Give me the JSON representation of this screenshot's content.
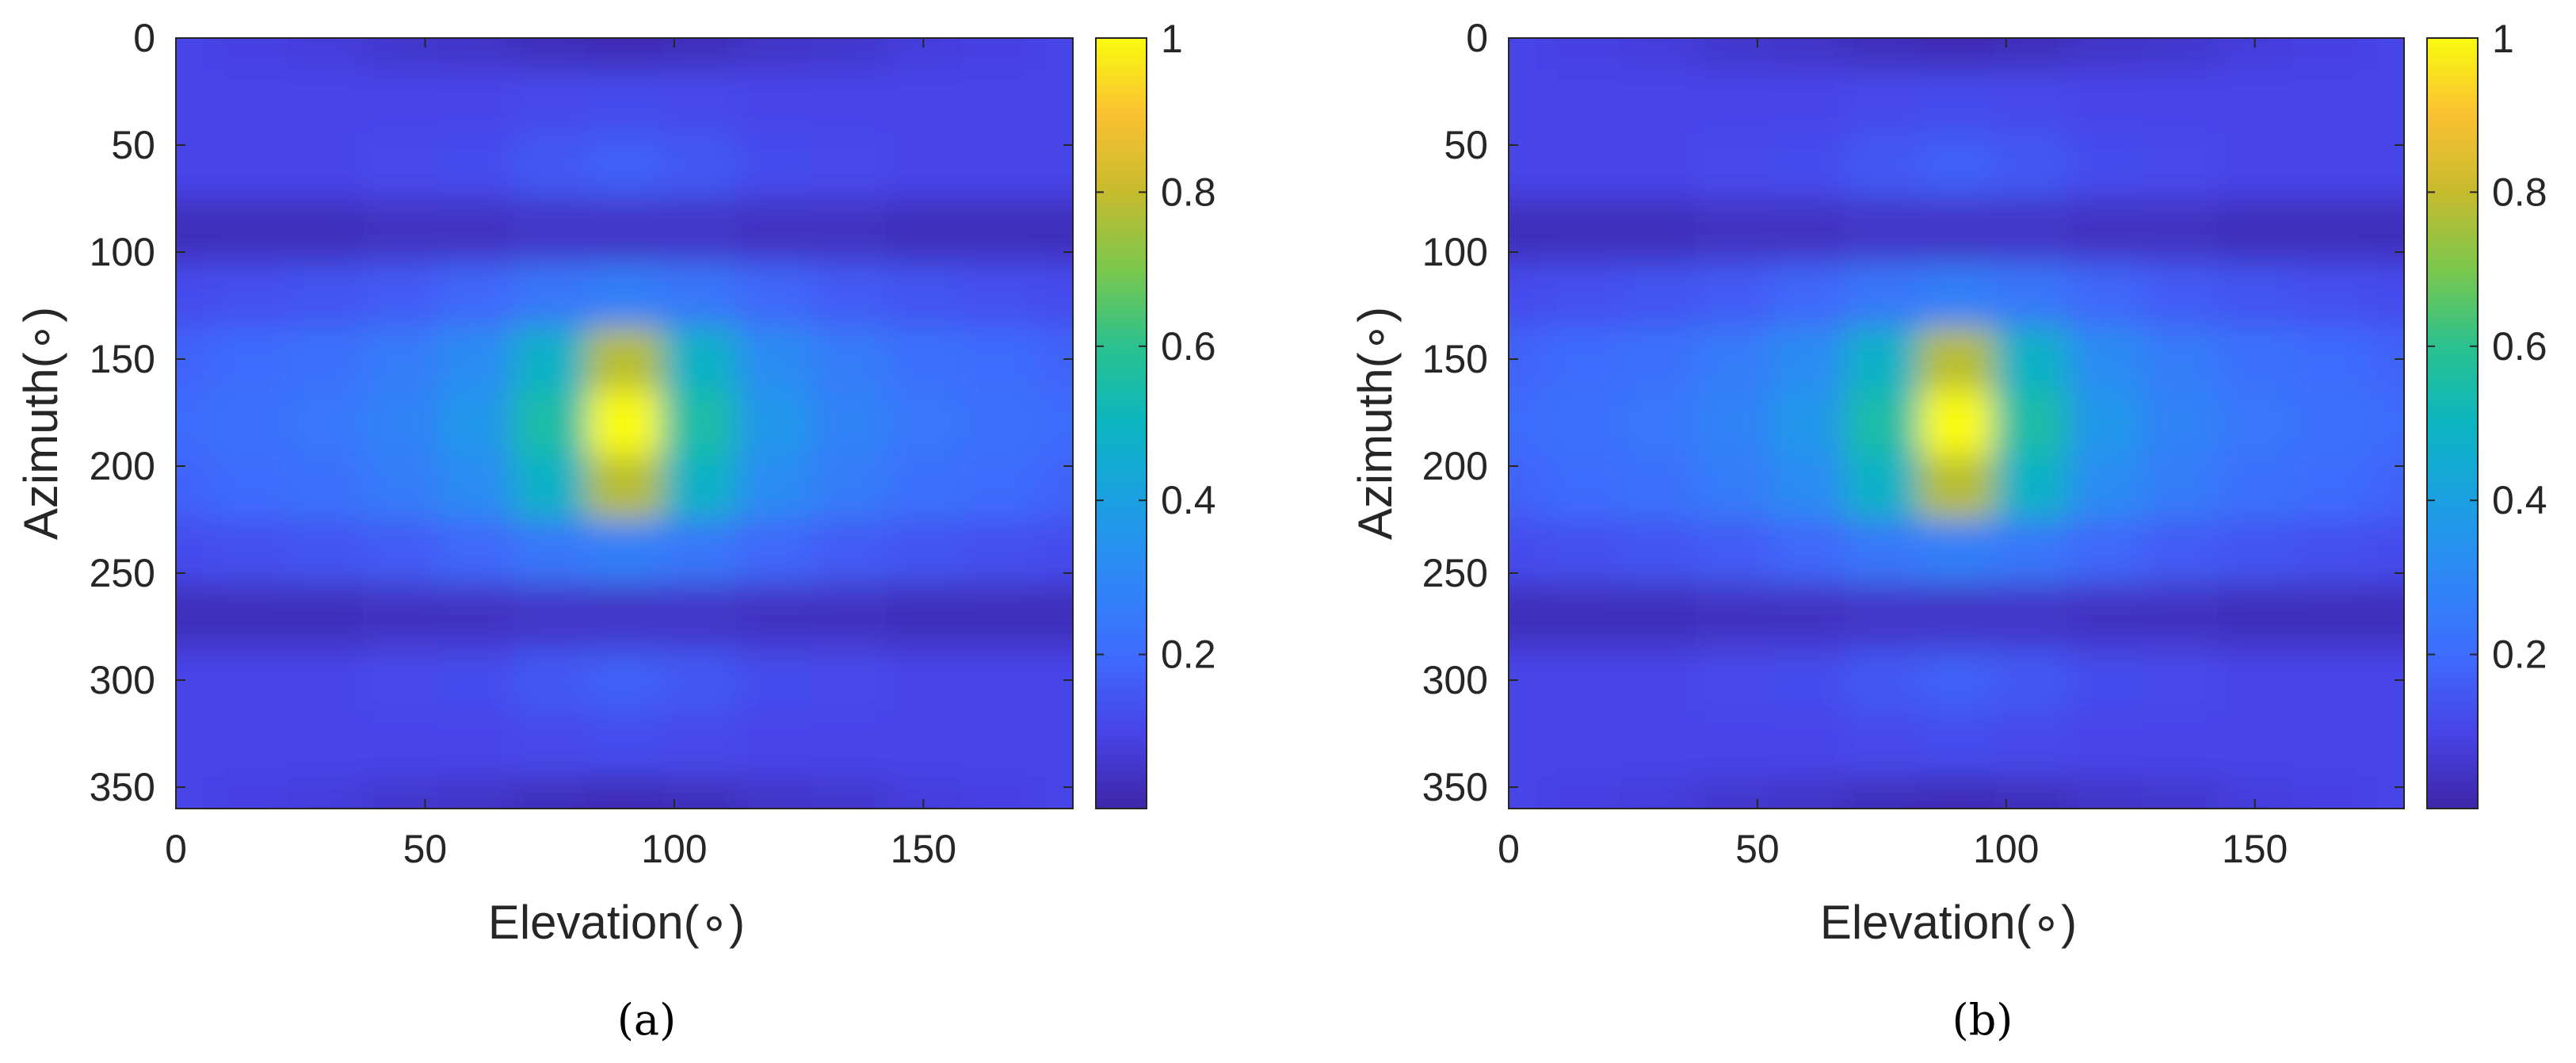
{
  "figure": {
    "panels": [
      {
        "caption": "(a)",
        "xlabel": "Elevation(∘)",
        "ylabel": "Azimuth(∘)"
      },
      {
        "caption": "(b)",
        "xlabel": "Elevation(∘)",
        "ylabel": "Azimuth(∘)"
      }
    ]
  },
  "chart_data": [
    {
      "type": "heatmap",
      "title": "",
      "xlabel": "Elevation(∘)",
      "ylabel": "Azimuth(∘)",
      "caption": "(a)",
      "xlim": [
        0,
        180
      ],
      "ylim": [
        0,
        360
      ],
      "y_direction": "reversed",
      "xticks": [
        "0",
        "50",
        "100",
        "150"
      ],
      "yticks": [
        "0",
        "50",
        "100",
        "150",
        "200",
        "250",
        "300",
        "350"
      ],
      "x_tick_values": [
        0,
        50,
        100,
        150
      ],
      "y_tick_values": [
        0,
        50,
        100,
        150,
        200,
        250,
        300,
        350
      ],
      "colorbar": {
        "ticks": [
          "0.2",
          "0.4",
          "0.6",
          "0.8",
          "1"
        ],
        "tick_values": [
          0.2,
          0.4,
          0.6,
          0.8,
          1
        ],
        "range": [
          0,
          1
        ],
        "colormap": "parula"
      },
      "x": [
        0,
        15,
        30,
        45,
        60,
        75,
        90,
        105,
        120,
        135,
        150,
        165,
        180
      ],
      "y": [
        0,
        30,
        60,
        90,
        120,
        150,
        180,
        210,
        240,
        270,
        300,
        330,
        360
      ],
      "values": [
        [
          0.1,
          0.09,
          0.08,
          0.06,
          0.05,
          0.03,
          0.02,
          0.03,
          0.05,
          0.06,
          0.08,
          0.09,
          0.1
        ],
        [
          0.1,
          0.1,
          0.1,
          0.1,
          0.1,
          0.11,
          0.12,
          0.11,
          0.1,
          0.1,
          0.1,
          0.1,
          0.1
        ],
        [
          0.1,
          0.1,
          0.1,
          0.11,
          0.12,
          0.15,
          0.17,
          0.15,
          0.12,
          0.11,
          0.1,
          0.1,
          0.1
        ],
        [
          0.03,
          0.03,
          0.03,
          0.04,
          0.04,
          0.05,
          0.05,
          0.05,
          0.04,
          0.04,
          0.03,
          0.03,
          0.03
        ],
        [
          0.12,
          0.13,
          0.14,
          0.16,
          0.19,
          0.24,
          0.27,
          0.24,
          0.19,
          0.16,
          0.14,
          0.13,
          0.12
        ],
        [
          0.18,
          0.2,
          0.22,
          0.26,
          0.32,
          0.48,
          0.78,
          0.48,
          0.32,
          0.26,
          0.22,
          0.2,
          0.18
        ],
        [
          0.2,
          0.22,
          0.24,
          0.28,
          0.36,
          0.55,
          1.0,
          0.55,
          0.36,
          0.28,
          0.24,
          0.22,
          0.2
        ],
        [
          0.18,
          0.2,
          0.22,
          0.26,
          0.32,
          0.48,
          0.78,
          0.48,
          0.32,
          0.26,
          0.22,
          0.2,
          0.18
        ],
        [
          0.12,
          0.13,
          0.14,
          0.16,
          0.19,
          0.24,
          0.27,
          0.24,
          0.19,
          0.16,
          0.14,
          0.13,
          0.12
        ],
        [
          0.03,
          0.03,
          0.03,
          0.04,
          0.04,
          0.05,
          0.05,
          0.05,
          0.04,
          0.04,
          0.03,
          0.03,
          0.03
        ],
        [
          0.1,
          0.1,
          0.1,
          0.11,
          0.12,
          0.15,
          0.17,
          0.15,
          0.12,
          0.11,
          0.1,
          0.1,
          0.1
        ],
        [
          0.1,
          0.1,
          0.1,
          0.1,
          0.1,
          0.11,
          0.12,
          0.11,
          0.1,
          0.1,
          0.1,
          0.1,
          0.1
        ],
        [
          0.1,
          0.09,
          0.08,
          0.06,
          0.05,
          0.03,
          0.02,
          0.03,
          0.05,
          0.06,
          0.08,
          0.09,
          0.1
        ]
      ]
    },
    {
      "type": "heatmap",
      "title": "",
      "xlabel": "Elevation(∘)",
      "ylabel": "Azimuth(∘)",
      "caption": "(b)",
      "xlim": [
        0,
        180
      ],
      "ylim": [
        0,
        360
      ],
      "y_direction": "reversed",
      "xticks": [
        "0",
        "50",
        "100",
        "150"
      ],
      "yticks": [
        "0",
        "50",
        "100",
        "150",
        "200",
        "250",
        "300",
        "350"
      ],
      "x_tick_values": [
        0,
        50,
        100,
        150
      ],
      "y_tick_values": [
        0,
        50,
        100,
        150,
        200,
        250,
        300,
        350
      ],
      "colorbar": {
        "ticks": [
          "0.2",
          "0.4",
          "0.6",
          "0.8",
          "1"
        ],
        "tick_values": [
          0.2,
          0.4,
          0.6,
          0.8,
          1
        ],
        "range": [
          0,
          1
        ],
        "colormap": "parula"
      },
      "x": [
        0,
        15,
        30,
        45,
        60,
        75,
        90,
        105,
        120,
        135,
        150,
        165,
        180
      ],
      "y": [
        0,
        30,
        60,
        90,
        120,
        150,
        180,
        210,
        240,
        270,
        300,
        330,
        360
      ],
      "values": [
        [
          0.1,
          0.09,
          0.08,
          0.06,
          0.05,
          0.03,
          0.02,
          0.03,
          0.05,
          0.06,
          0.08,
          0.09,
          0.1
        ],
        [
          0.1,
          0.1,
          0.1,
          0.1,
          0.1,
          0.11,
          0.12,
          0.11,
          0.1,
          0.1,
          0.1,
          0.1,
          0.1
        ],
        [
          0.1,
          0.1,
          0.1,
          0.11,
          0.12,
          0.15,
          0.17,
          0.15,
          0.12,
          0.11,
          0.1,
          0.1,
          0.1
        ],
        [
          0.03,
          0.03,
          0.03,
          0.04,
          0.04,
          0.05,
          0.05,
          0.05,
          0.04,
          0.04,
          0.03,
          0.03,
          0.03
        ],
        [
          0.12,
          0.13,
          0.14,
          0.16,
          0.19,
          0.24,
          0.27,
          0.24,
          0.19,
          0.16,
          0.14,
          0.13,
          0.12
        ],
        [
          0.18,
          0.2,
          0.22,
          0.26,
          0.32,
          0.48,
          0.78,
          0.48,
          0.32,
          0.26,
          0.22,
          0.2,
          0.18
        ],
        [
          0.2,
          0.22,
          0.24,
          0.28,
          0.36,
          0.55,
          1.0,
          0.55,
          0.36,
          0.28,
          0.24,
          0.22,
          0.2
        ],
        [
          0.18,
          0.2,
          0.22,
          0.26,
          0.32,
          0.48,
          0.78,
          0.48,
          0.32,
          0.26,
          0.22,
          0.2,
          0.18
        ],
        [
          0.12,
          0.13,
          0.14,
          0.16,
          0.19,
          0.24,
          0.27,
          0.24,
          0.19,
          0.16,
          0.14,
          0.13,
          0.12
        ],
        [
          0.03,
          0.03,
          0.03,
          0.04,
          0.04,
          0.05,
          0.05,
          0.05,
          0.04,
          0.04,
          0.03,
          0.03,
          0.03
        ],
        [
          0.1,
          0.1,
          0.1,
          0.11,
          0.12,
          0.15,
          0.17,
          0.15,
          0.12,
          0.11,
          0.1,
          0.1,
          0.1
        ],
        [
          0.1,
          0.1,
          0.1,
          0.1,
          0.1,
          0.11,
          0.12,
          0.11,
          0.1,
          0.1,
          0.1,
          0.1,
          0.1
        ],
        [
          0.1,
          0.09,
          0.08,
          0.06,
          0.05,
          0.03,
          0.02,
          0.03,
          0.05,
          0.06,
          0.08,
          0.09,
          0.1
        ]
      ]
    }
  ]
}
